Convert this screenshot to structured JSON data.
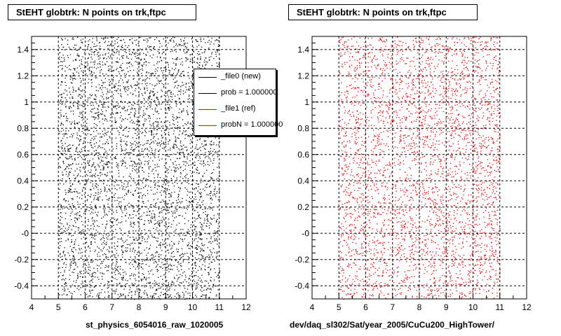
{
  "chart_data": [
    {
      "type": "scatter",
      "title": "StEHT globtrk: N points on trk,ftpc",
      "xlabel": "st_physics_6054016_raw_1020005",
      "ylabel": "",
      "xlim": [
        4,
        12
      ],
      "ylim": [
        -0.5,
        1.5
      ],
      "x_ticks": [
        "4",
        "5",
        "6",
        "7",
        "8",
        "9",
        "10",
        "11",
        "12"
      ],
      "y_ticks": [
        "-0.4",
        "-0.2",
        "-0",
        "0.2",
        "0.4",
        "0.6",
        "0.8",
        "1",
        "1.2",
        "1.4"
      ],
      "x_data_range": [
        5,
        11
      ],
      "y_data_range": [
        -0.5,
        1.5
      ],
      "point_density": 4500,
      "point_color": "#000000",
      "grid": true,
      "legend_position": "top-right",
      "legend": [
        {
          "label": "_file0 (new)",
          "color": "#000000"
        },
        {
          "label": "prob = 1.000000",
          "color": "#000000"
        },
        {
          "label": "_file1 (ref)",
          "color": "#ff0000"
        },
        {
          "label": "probN = 1.000000",
          "color": "#ff0000"
        }
      ]
    },
    {
      "type": "scatter",
      "title": "StEHT globtrk: N points on trk,ftpc",
      "xlabel": "dev/daq_sl302/Sat/year_2005/CuCu200_HighTower/",
      "ylabel": "",
      "xlim": [
        4,
        12
      ],
      "ylim": [
        -0.5,
        1.5
      ],
      "x_ticks": [
        "4",
        "5",
        "6",
        "7",
        "8",
        "9",
        "10",
        "11",
        "12"
      ],
      "y_ticks": [
        "-0.4",
        "-0.2",
        "-0",
        "0.2",
        "0.4",
        "0.6",
        "0.8",
        "1",
        "1.2",
        "1.4"
      ],
      "x_data_range": [
        5,
        11
      ],
      "y_data_range": [
        -0.5,
        1.5
      ],
      "point_density": 3800,
      "point_color": "#ff0000",
      "grid": true
    }
  ]
}
